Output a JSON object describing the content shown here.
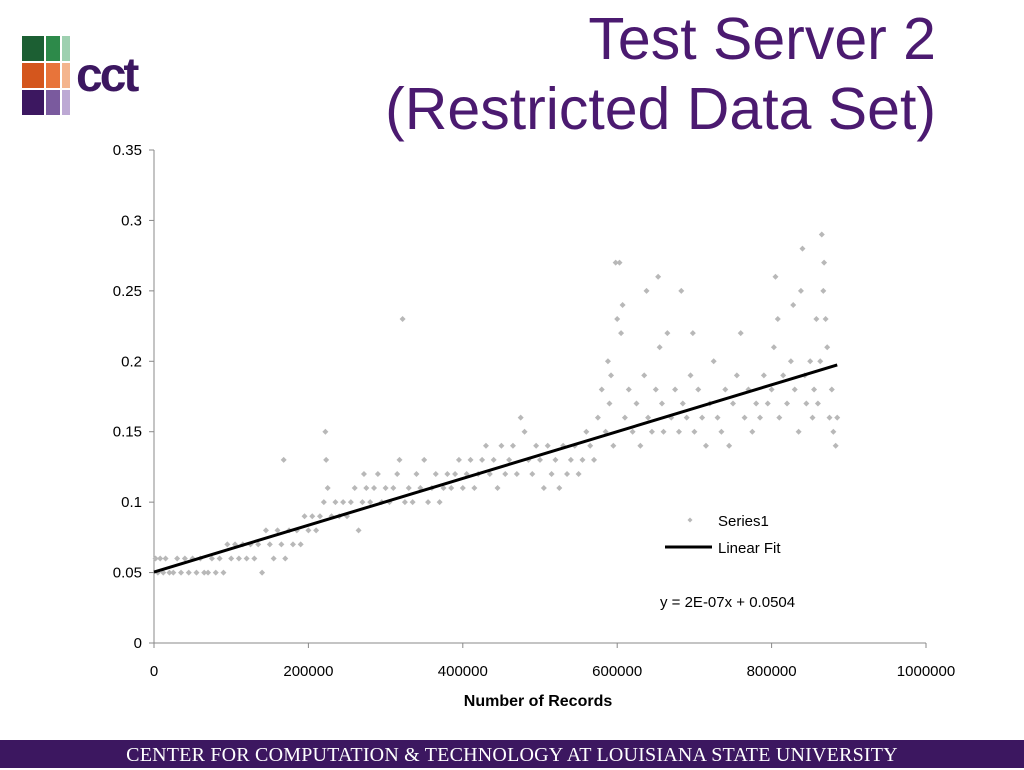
{
  "title_line1": "Test Server 2",
  "title_line2": "(Restricted Data Set)",
  "logo": {
    "text": "cct"
  },
  "footer": "CENTER FOR COMPUTATION & TECHNOLOGY AT LOUISIANA STATE UNIVERSITY",
  "colors": {
    "title": "#4b1a70",
    "footer_bg": "#3c1760",
    "logo_text": "#3c1760",
    "scatter": "#b8b8b8",
    "fit_line": "#000000",
    "logo_squares": [
      "#1c5f33",
      "#2d8a4a",
      "#9ed0b0",
      "#d4561d",
      "#e8743a",
      "#f4b58e",
      "#3c1760",
      "#7a5a9e",
      "#bda9d4"
    ]
  },
  "chart_data": {
    "type": "scatter",
    "xlabel": "Number of Records",
    "ylabel": "",
    "xlim": [
      0,
      1000000
    ],
    "ylim": [
      0,
      0.35
    ],
    "x_ticks": [
      "0",
      "200000",
      "400000",
      "600000",
      "800000",
      "1000000"
    ],
    "y_ticks": [
      "0",
      "0.05",
      "0.1",
      "0.15",
      "0.2",
      "0.25",
      "0.3",
      "0.35"
    ],
    "grid": false,
    "legend_position": "right",
    "series": [
      {
        "name": "Series1",
        "marker": "diamond",
        "points": [
          [
            2000,
            0.06
          ],
          [
            5000,
            0.05
          ],
          [
            8000,
            0.06
          ],
          [
            12000,
            0.05
          ],
          [
            15000,
            0.06
          ],
          [
            20000,
            0.05
          ],
          [
            25000,
            0.05
          ],
          [
            30000,
            0.06
          ],
          [
            35000,
            0.05
          ],
          [
            40000,
            0.06
          ],
          [
            45000,
            0.05
          ],
          [
            50000,
            0.06
          ],
          [
            55000,
            0.05
          ],
          [
            60000,
            0.06
          ],
          [
            65000,
            0.05
          ],
          [
            70000,
            0.05
          ],
          [
            75000,
            0.06
          ],
          [
            80000,
            0.05
          ],
          [
            85000,
            0.06
          ],
          [
            90000,
            0.05
          ],
          [
            95000,
            0.07
          ],
          [
            100000,
            0.06
          ],
          [
            105000,
            0.07
          ],
          [
            110000,
            0.06
          ],
          [
            115000,
            0.07
          ],
          [
            120000,
            0.06
          ],
          [
            125000,
            0.07
          ],
          [
            130000,
            0.06
          ],
          [
            135000,
            0.07
          ],
          [
            140000,
            0.05
          ],
          [
            145000,
            0.08
          ],
          [
            150000,
            0.07
          ],
          [
            155000,
            0.06
          ],
          [
            160000,
            0.08
          ],
          [
            165000,
            0.07
          ],
          [
            168000,
            0.13
          ],
          [
            170000,
            0.06
          ],
          [
            175000,
            0.08
          ],
          [
            180000,
            0.07
          ],
          [
            185000,
            0.08
          ],
          [
            190000,
            0.07
          ],
          [
            195000,
            0.09
          ],
          [
            200000,
            0.08
          ],
          [
            205000,
            0.09
          ],
          [
            210000,
            0.08
          ],
          [
            215000,
            0.09
          ],
          [
            220000,
            0.1
          ],
          [
            222000,
            0.15
          ],
          [
            223000,
            0.13
          ],
          [
            225000,
            0.11
          ],
          [
            230000,
            0.09
          ],
          [
            235000,
            0.1
          ],
          [
            240000,
            0.09
          ],
          [
            245000,
            0.1
          ],
          [
            250000,
            0.09
          ],
          [
            255000,
            0.1
          ],
          [
            260000,
            0.11
          ],
          [
            265000,
            0.08
          ],
          [
            270000,
            0.1
          ],
          [
            272000,
            0.12
          ],
          [
            275000,
            0.11
          ],
          [
            280000,
            0.1
          ],
          [
            285000,
            0.11
          ],
          [
            290000,
            0.12
          ],
          [
            295000,
            0.1
          ],
          [
            300000,
            0.11
          ],
          [
            305000,
            0.1
          ],
          [
            310000,
            0.11
          ],
          [
            315000,
            0.12
          ],
          [
            318000,
            0.13
          ],
          [
            322000,
            0.23
          ],
          [
            325000,
            0.1
          ],
          [
            330000,
            0.11
          ],
          [
            335000,
            0.1
          ],
          [
            340000,
            0.12
          ],
          [
            345000,
            0.11
          ],
          [
            350000,
            0.13
          ],
          [
            355000,
            0.1
          ],
          [
            360000,
            0.11
          ],
          [
            365000,
            0.12
          ],
          [
            370000,
            0.1
          ],
          [
            375000,
            0.11
          ],
          [
            380000,
            0.12
          ],
          [
            385000,
            0.11
          ],
          [
            390000,
            0.12
          ],
          [
            395000,
            0.13
          ],
          [
            400000,
            0.11
          ],
          [
            405000,
            0.12
          ],
          [
            410000,
            0.13
          ],
          [
            415000,
            0.11
          ],
          [
            420000,
            0.12
          ],
          [
            425000,
            0.13
          ],
          [
            430000,
            0.14
          ],
          [
            435000,
            0.12
          ],
          [
            440000,
            0.13
          ],
          [
            445000,
            0.11
          ],
          [
            450000,
            0.14
          ],
          [
            455000,
            0.12
          ],
          [
            460000,
            0.13
          ],
          [
            465000,
            0.14
          ],
          [
            470000,
            0.12
          ],
          [
            475000,
            0.16
          ],
          [
            480000,
            0.15
          ],
          [
            485000,
            0.13
          ],
          [
            490000,
            0.12
          ],
          [
            495000,
            0.14
          ],
          [
            500000,
            0.13
          ],
          [
            505000,
            0.11
          ],
          [
            510000,
            0.14
          ],
          [
            515000,
            0.12
          ],
          [
            520000,
            0.13
          ],
          [
            525000,
            0.11
          ],
          [
            530000,
            0.14
          ],
          [
            535000,
            0.12
          ],
          [
            540000,
            0.13
          ],
          [
            545000,
            0.14
          ],
          [
            550000,
            0.12
          ],
          [
            555000,
            0.13
          ],
          [
            560000,
            0.15
          ],
          [
            565000,
            0.14
          ],
          [
            570000,
            0.13
          ],
          [
            575000,
            0.16
          ],
          [
            580000,
            0.18
          ],
          [
            585000,
            0.15
          ],
          [
            588000,
            0.2
          ],
          [
            590000,
            0.17
          ],
          [
            592000,
            0.19
          ],
          [
            595000,
            0.14
          ],
          [
            598000,
            0.27
          ],
          [
            600000,
            0.23
          ],
          [
            603000,
            0.27
          ],
          [
            605000,
            0.22
          ],
          [
            607000,
            0.24
          ],
          [
            610000,
            0.16
          ],
          [
            615000,
            0.18
          ],
          [
            620000,
            0.15
          ],
          [
            625000,
            0.17
          ],
          [
            630000,
            0.14
          ],
          [
            635000,
            0.19
          ],
          [
            638000,
            0.25
          ],
          [
            640000,
            0.16
          ],
          [
            645000,
            0.15
          ],
          [
            650000,
            0.18
          ],
          [
            653000,
            0.26
          ],
          [
            655000,
            0.21
          ],
          [
            658000,
            0.17
          ],
          [
            660000,
            0.15
          ],
          [
            665000,
            0.22
          ],
          [
            670000,
            0.16
          ],
          [
            675000,
            0.18
          ],
          [
            680000,
            0.15
          ],
          [
            683000,
            0.25
          ],
          [
            685000,
            0.17
          ],
          [
            690000,
            0.16
          ],
          [
            695000,
            0.19
          ],
          [
            698000,
            0.22
          ],
          [
            700000,
            0.15
          ],
          [
            705000,
            0.18
          ],
          [
            710000,
            0.16
          ],
          [
            715000,
            0.14
          ],
          [
            720000,
            0.17
          ],
          [
            725000,
            0.2
          ],
          [
            730000,
            0.16
          ],
          [
            735000,
            0.15
          ],
          [
            740000,
            0.18
          ],
          [
            745000,
            0.14
          ],
          [
            750000,
            0.17
          ],
          [
            755000,
            0.19
          ],
          [
            760000,
            0.22
          ],
          [
            765000,
            0.16
          ],
          [
            770000,
            0.18
          ],
          [
            775000,
            0.15
          ],
          [
            780000,
            0.17
          ],
          [
            785000,
            0.16
          ],
          [
            790000,
            0.19
          ],
          [
            795000,
            0.17
          ],
          [
            800000,
            0.18
          ],
          [
            803000,
            0.21
          ],
          [
            805000,
            0.26
          ],
          [
            808000,
            0.23
          ],
          [
            810000,
            0.16
          ],
          [
            815000,
            0.19
          ],
          [
            820000,
            0.17
          ],
          [
            825000,
            0.2
          ],
          [
            828000,
            0.24
          ],
          [
            830000,
            0.18
          ],
          [
            835000,
            0.15
          ],
          [
            838000,
            0.25
          ],
          [
            840000,
            0.28
          ],
          [
            843000,
            0.19
          ],
          [
            845000,
            0.17
          ],
          [
            850000,
            0.2
          ],
          [
            853000,
            0.16
          ],
          [
            855000,
            0.18
          ],
          [
            858000,
            0.23
          ],
          [
            860000,
            0.17
          ],
          [
            863000,
            0.2
          ],
          [
            865000,
            0.29
          ],
          [
            867000,
            0.25
          ],
          [
            868000,
            0.27
          ],
          [
            870000,
            0.23
          ],
          [
            872000,
            0.21
          ],
          [
            875000,
            0.16
          ],
          [
            878000,
            0.18
          ],
          [
            880000,
            0.15
          ],
          [
            883000,
            0.14
          ],
          [
            885000,
            0.16
          ]
        ]
      },
      {
        "name": "Linear Fit",
        "type": "line",
        "x": [
          0,
          885000
        ],
        "y": [
          0.0504,
          0.1974
        ]
      }
    ],
    "annotation": "y = 2E-07x + 0.0504"
  }
}
